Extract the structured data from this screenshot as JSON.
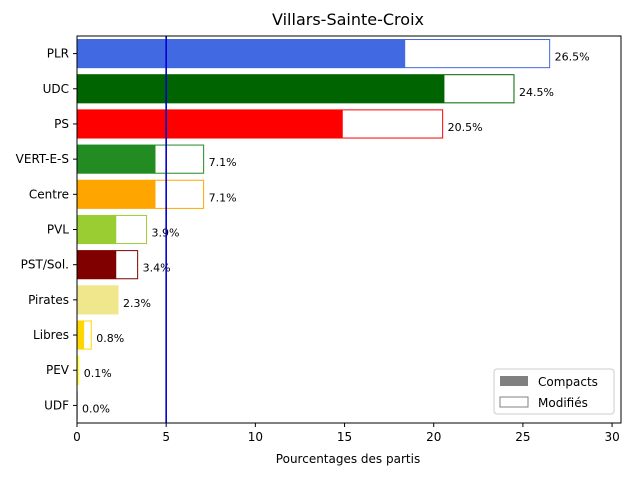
{
  "chart_data": {
    "type": "bar",
    "orientation": "horizontal",
    "title": "Villars-Sainte-Croix",
    "xlabel": "Pourcentages des partis",
    "ylabel": "",
    "xlim": [
      0,
      30.5
    ],
    "xticks": [
      "0",
      "5",
      "10",
      "15",
      "20",
      "25",
      "30"
    ],
    "threshold_line": {
      "value": 5,
      "color": "#0000cd"
    },
    "grid": false,
    "legend_position": "lower right",
    "legend": [
      {
        "name": "Compacts",
        "style": "filled"
      },
      {
        "name": "Modifiés",
        "style": "outline"
      }
    ],
    "categories": [
      "PLR",
      "UDC",
      "PS",
      "VERT-E-S",
      "Centre",
      "PVL",
      "PST/Sol.",
      "Pirates",
      "Libres",
      "PEV",
      "UDF"
    ],
    "series": [
      {
        "name": "Compacts",
        "values": [
          18.4,
          20.6,
          14.9,
          4.4,
          4.4,
          2.2,
          2.2,
          2.3,
          0.4,
          0.05,
          0.0
        ]
      },
      {
        "name": "Modifiés",
        "values": [
          26.5,
          24.5,
          20.5,
          7.1,
          7.1,
          3.9,
          3.4,
          2.3,
          0.8,
          0.1,
          0.0
        ]
      }
    ],
    "value_labels": [
      "26.5%",
      "24.5%",
      "20.5%",
      "7.1%",
      "7.1%",
      "3.9%",
      "3.4%",
      "2.3%",
      "0.8%",
      "0.1%",
      "0.0%"
    ],
    "colors": [
      "#4169e1",
      "#006400",
      "#ff0000",
      "#228b22",
      "#ffa500",
      "#9acd32",
      "#800000",
      "#f0e68c",
      "#ffd700",
      "#ffff00",
      "#4b0082"
    ]
  }
}
